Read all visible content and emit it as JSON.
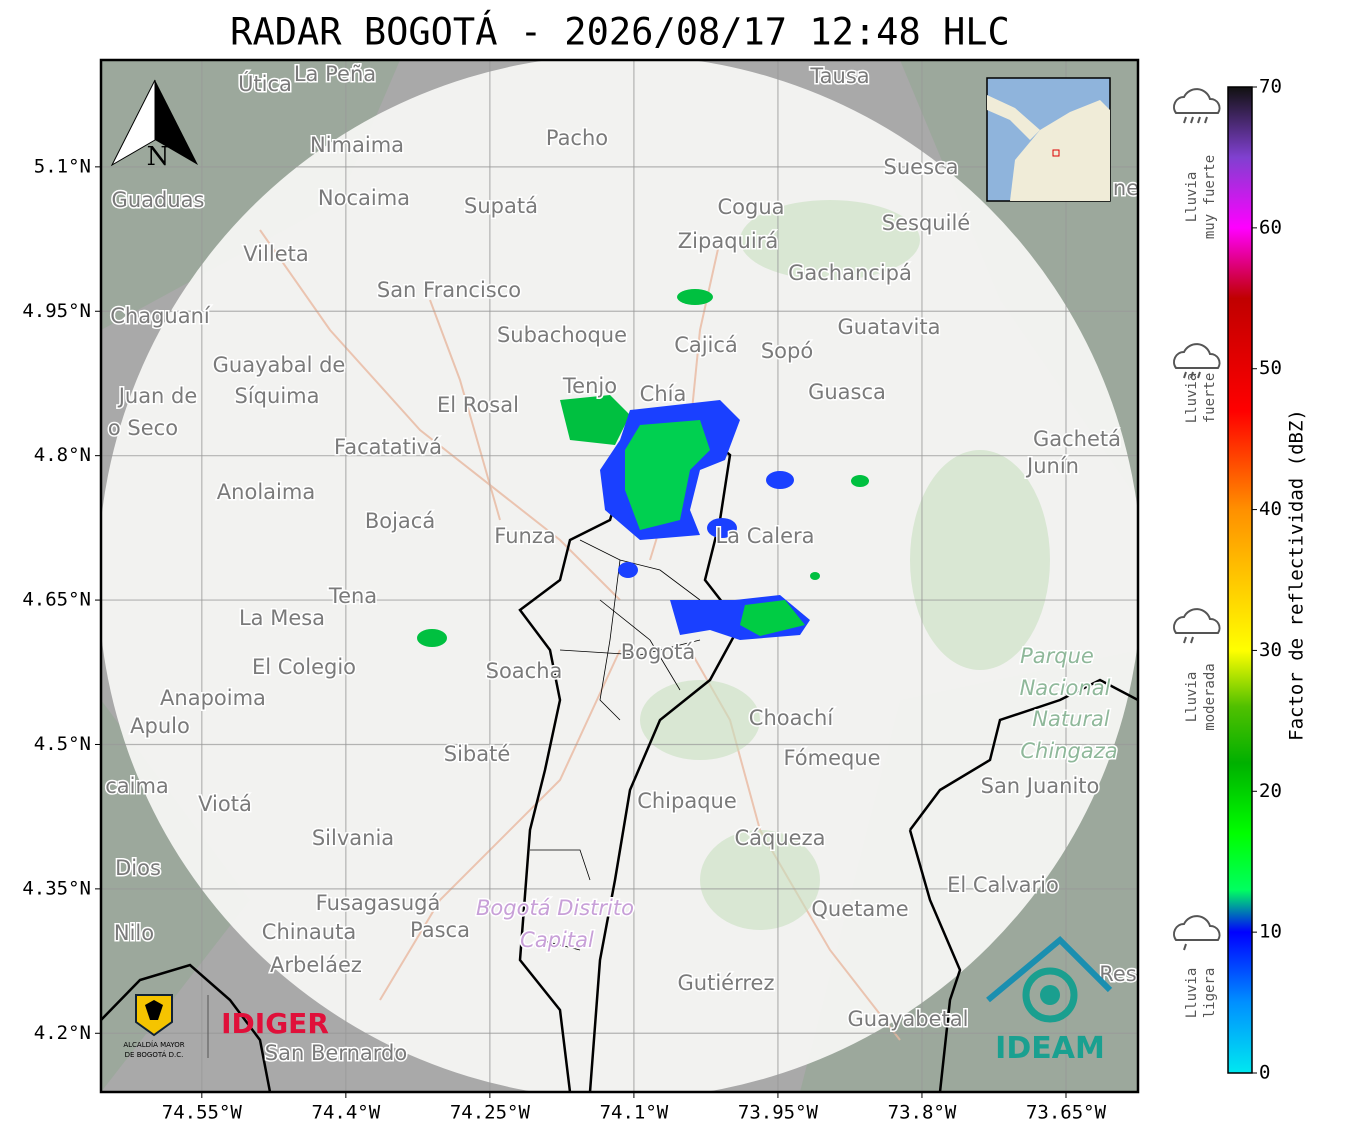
{
  "title": "RADAR BOGOTÁ - 2026/08/17 12:48 HLC",
  "map": {
    "xlim": [
      -74.655,
      -73.575
    ],
    "ylim": [
      4.139,
      5.211
    ],
    "xticks": [
      {
        "value": -74.55,
        "label": "74.55°W"
      },
      {
        "value": -74.4,
        "label": "74.4°W"
      },
      {
        "value": -74.25,
        "label": "74.25°W"
      },
      {
        "value": -74.1,
        "label": "74.1°W"
      },
      {
        "value": -73.95,
        "label": "73.95°W"
      },
      {
        "value": -73.8,
        "label": "73.8°W"
      },
      {
        "value": -73.65,
        "label": "73.65°W"
      }
    ],
    "yticks": [
      {
        "value": 5.1,
        "label": "5.1°N"
      },
      {
        "value": 4.95,
        "label": "4.95°N"
      },
      {
        "value": 4.8,
        "label": "4.8°N"
      },
      {
        "value": 4.65,
        "label": "4.65°N"
      },
      {
        "value": 4.5,
        "label": "4.5°N"
      },
      {
        "value": 4.35,
        "label": "4.35°N"
      },
      {
        "value": 4.2,
        "label": "4.2°N"
      }
    ],
    "grid": true,
    "north": "N",
    "towns": [
      "Útica",
      "La Peña",
      "Tausa",
      "Pacho",
      "Nimaima",
      "Guaduas",
      "Nocaima",
      "Supatá",
      "Cogua",
      "Suesca",
      "Sesquilé",
      "Zipaquirá",
      "Villeta",
      "Gachancipá",
      "San Francisco",
      "Chaguaní",
      "Guatavita",
      "Subachoque",
      "Cajicá",
      "Sopó",
      "Guayabal de",
      "Síquima",
      "Juan de",
      "o Seco",
      "Tenjo",
      "Chía",
      "Guasca",
      "El Rosal",
      "Gachetá",
      "Junín",
      "Facatativá",
      "Anolaima",
      "Bojacá",
      "Funza",
      "La Calera",
      "Tena",
      "La Mesa",
      "Bogotá",
      "El Colegio",
      "Soacha",
      "Anapoima",
      "Apulo",
      "Choachí",
      "Sibaté",
      "Fómeque",
      "San Juanito",
      "caima",
      "Viotá",
      "Chipaque",
      "Silvania",
      "Cáqueza",
      "Dios",
      "El Calvario",
      "Fusagasugá",
      "Quetame",
      "Nilo",
      "Chinauta",
      "Pasca",
      "Arbeláez",
      "Gutiérrez",
      "Guayabetal",
      "San Bernardo",
      "Res",
      "ne"
    ],
    "park_labels": [
      "Parque",
      "Nacional",
      "Natural",
      "Chingaza"
    ],
    "district_labels": [
      "Bogotá Distrito",
      "Capital"
    ]
  },
  "colorbar": {
    "label": "Factor de reflectividad (dBZ)",
    "lim": [
      0,
      70
    ],
    "ticks": [
      0,
      10,
      20,
      30,
      40,
      50,
      60,
      70
    ],
    "color_stops": [
      [
        0,
        "#00e8f0"
      ],
      [
        5,
        "#0090ff"
      ],
      [
        10,
        "#0000ff"
      ],
      [
        13,
        "#00ff60"
      ],
      [
        17,
        "#00ff00"
      ],
      [
        22,
        "#00b000"
      ],
      [
        26,
        "#50c000"
      ],
      [
        30,
        "#ffff00"
      ],
      [
        40,
        "#ff9000"
      ],
      [
        47,
        "#ff0000"
      ],
      [
        55,
        "#c00000"
      ],
      [
        60,
        "#ff00ff"
      ],
      [
        65,
        "#8040d0"
      ],
      [
        70,
        "#111111"
      ]
    ]
  },
  "rain_levels": [
    [
      "Lluvia",
      "muy fuerte"
    ],
    [
      "Lluvia",
      "fuerte"
    ],
    [
      "Lluvia",
      "moderada"
    ],
    [
      "Lluvia",
      "ligera"
    ]
  ],
  "logos": {
    "alcaldia": [
      "ALCALDÍA MAYOR",
      "DE BOGOTÁ D.C."
    ],
    "idiger": "IDIGER",
    "ideam": "IDEAM"
  }
}
